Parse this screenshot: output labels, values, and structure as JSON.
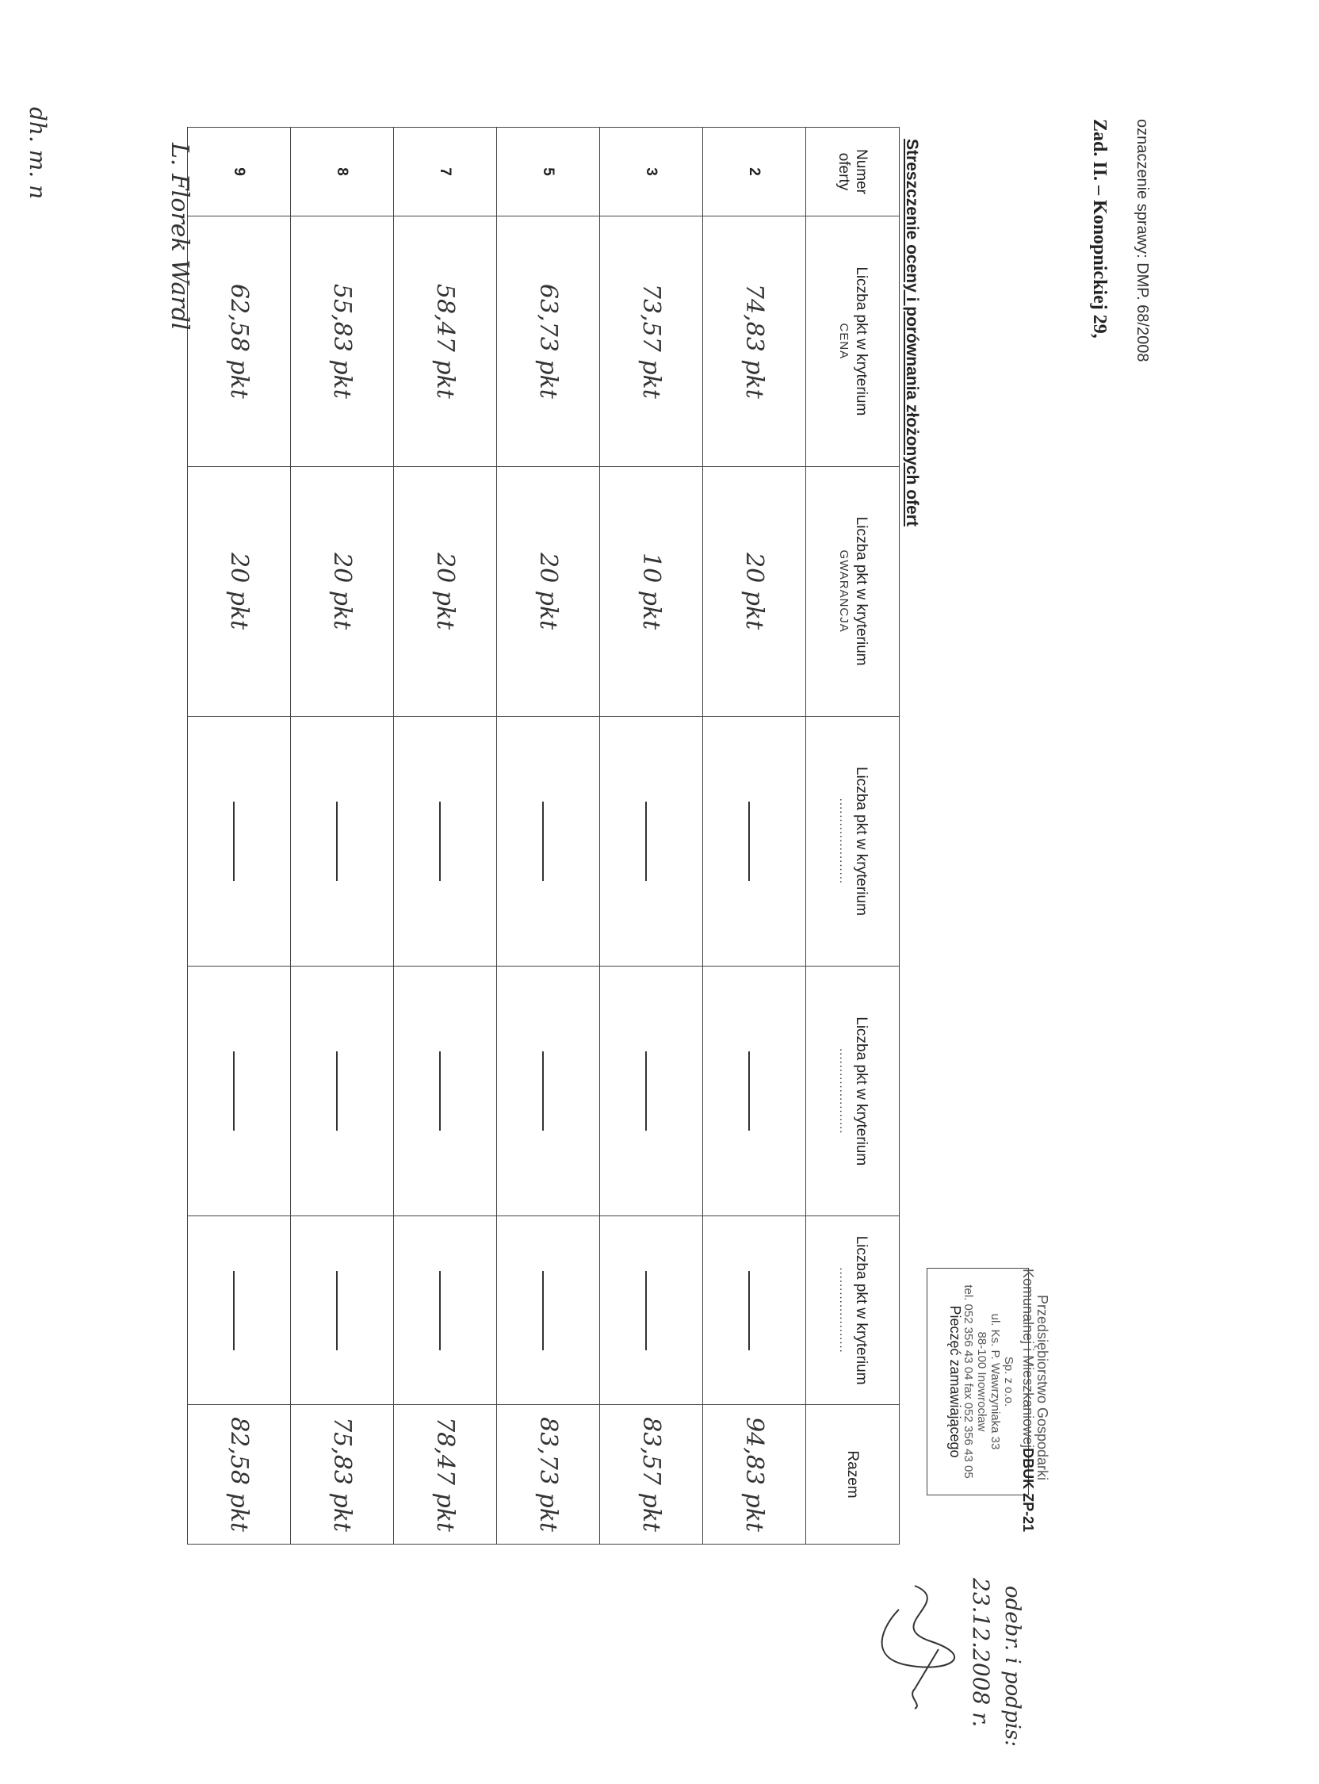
{
  "header": {
    "case_number": "oznaczenie sprawy: DMP. 68/2008",
    "task": "Zad. II. – Konopnickiej 29,"
  },
  "title": "Streszczenie oceny i porównania złożonych ofert",
  "table": {
    "columns": [
      {
        "label": "Numer oferty",
        "criterion": ""
      },
      {
        "label": "Liczba pkt w kryterium",
        "criterion": "CENA"
      },
      {
        "label": "Liczba pkt w kryterium",
        "criterion": "GWARANCJA"
      },
      {
        "label": "Liczba pkt w kryterium",
        "criterion": "....................."
      },
      {
        "label": "Liczba pkt w kryterium",
        "criterion": "....................."
      },
      {
        "label": "Liczba pkt w kryterium",
        "criterion": "....................."
      },
      {
        "label": "Razem",
        "criterion": ""
      }
    ],
    "rows": [
      {
        "number": "2",
        "cena": "74,83 pkt",
        "gwarancja": "20 pkt",
        "razem": "94,83 pkt"
      },
      {
        "number": "3",
        "cena": "73,57 pkt",
        "gwarancja": "10 pkt",
        "razem": "83,57 pkt"
      },
      {
        "number": "5",
        "cena": "63,73 pkt",
        "gwarancja": "20 pkt",
        "razem": "83,73 pkt"
      },
      {
        "number": "7",
        "cena": "58,47 pkt",
        "gwarancja": "20 pkt",
        "razem": "78,47 pkt"
      },
      {
        "number": "8",
        "cena": "55,83 pkt",
        "gwarancja": "20 pkt",
        "razem": "75,83 pkt"
      },
      {
        "number": "9",
        "cena": "62,58 pkt",
        "gwarancja": "20 pkt",
        "razem": "82,58 pkt"
      }
    ]
  },
  "stamp": {
    "line1": "Przedsiębiorstwo Gospodarki",
    "line2": "Komunalnej i Mieszkaniowej",
    "code": "DBUK ZP-21",
    "line3": "Sp. z o.o.",
    "line4": "ul. Ks. P. Wawrzyniaka 33",
    "line5": "88-100 Inowrocław",
    "line6": "tel. 052 356 43 04 fax 052 356 43 05",
    "label": "Pieczęć zamawiającego"
  },
  "handwritten": {
    "receipt": "odebr. i podpis:",
    "receipt_date": "23.12.2008 r.",
    "signature_left": "L. Florek Wardl",
    "initials": "dh. m. n"
  }
}
